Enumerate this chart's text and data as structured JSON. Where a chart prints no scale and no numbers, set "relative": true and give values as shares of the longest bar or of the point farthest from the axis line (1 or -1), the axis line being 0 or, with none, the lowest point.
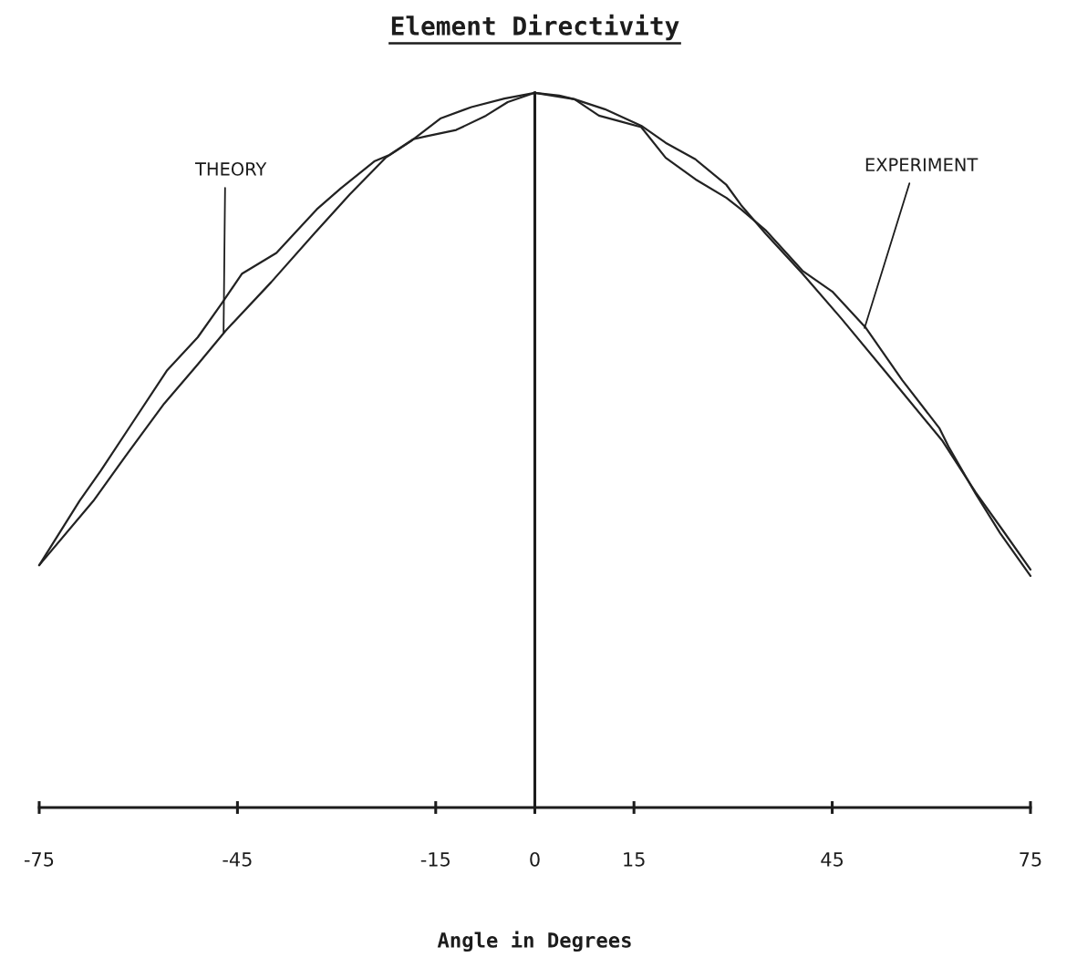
{
  "chart_data": {
    "type": "line",
    "title": "Element Directivity",
    "xlabel": "Angle in Degrees",
    "relative": true,
    "xlim": [
      -75,
      75
    ],
    "xticks": [
      -75,
      -45,
      -15,
      0,
      15,
      45,
      75
    ],
    "series": [
      {
        "color": "#222222",
        "x": [
          -75.0,
          -66.8,
          -61.6,
          -56.1,
          -51.0,
          -46.8,
          -39.9,
          -33.0,
          -28.0,
          -22.6,
          -18.8,
          -14.3,
          -9.6,
          -4.6,
          0,
          6.0,
          10.6,
          16.1,
          19.8,
          24.3,
          29.0,
          31.2,
          35.0,
          40.5,
          46.4,
          53.3,
          61.6,
          66.7,
          70.8,
          75.0
        ],
        "values": [
          0.339,
          0.429,
          0.496,
          0.565,
          0.62,
          0.667,
          0.735,
          0.807,
          0.858,
          0.909,
          0.932,
          0.964,
          0.98,
          0.992,
          1.0,
          0.991,
          0.977,
          0.954,
          0.93,
          0.907,
          0.871,
          0.843,
          0.802,
          0.747,
          0.684,
          0.607,
          0.514,
          0.441,
          0.388,
          0.333
        ]
      },
      {
        "color": "#222222",
        "x": [
          -75.0,
          -68.9,
          -65.7,
          -61.2,
          -55.7,
          -51.0,
          -47.4,
          -44.3,
          -39.1,
          -33.0,
          -29.4,
          -24.3,
          -22.0,
          -18.4,
          -16.5,
          -11.9,
          -7.4,
          -4.1,
          0,
          3.7,
          6.0,
          9.7,
          12.9,
          16.1,
          19.8,
          24.3,
          29.0,
          31.2,
          35.0,
          40.5,
          45.0,
          50.1,
          55.6,
          61.2,
          62.6,
          66.7,
          70.4,
          75.0
        ],
        "values": [
          0.339,
          0.429,
          0.471,
          0.534,
          0.611,
          0.658,
          0.705,
          0.747,
          0.776,
          0.837,
          0.866,
          0.904,
          0.913,
          0.935,
          0.939,
          0.948,
          0.968,
          0.987,
          1.0,
          0.996,
          0.991,
          0.968,
          0.96,
          0.952,
          0.909,
          0.879,
          0.853,
          0.837,
          0.807,
          0.751,
          0.722,
          0.671,
          0.598,
          0.531,
          0.505,
          0.439,
          0.384,
          0.324
        ]
      }
    ],
    "ref_lines": [
      {
        "axis": "x",
        "value": 0
      }
    ],
    "annotations": [
      {
        "text": "THEORY",
        "x": -47.1,
        "y": 0.665
      },
      {
        "text": "EXPERIMENT",
        "x": 49.9,
        "y": 0.671
      }
    ]
  }
}
